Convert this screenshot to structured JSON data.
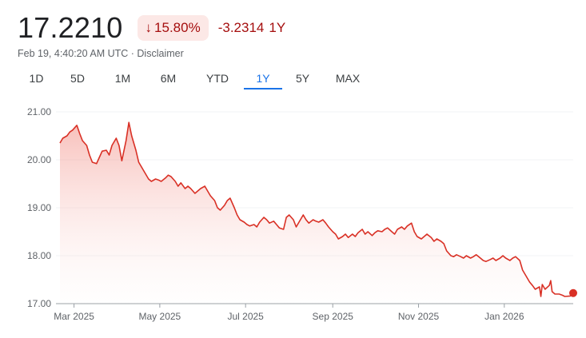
{
  "quote": {
    "price": "17.2210",
    "change_percent": "15.80%",
    "change_direction_icon": "arrow-down-icon",
    "change_absolute": "-3.2314",
    "change_period": "1Y",
    "timestamp": "Feb 19, 4:40:20 AM UTC",
    "separator": "·",
    "disclaimer_label": "Disclaimer"
  },
  "colors": {
    "negative": "#a50e0e",
    "negative_bg": "#fce8e6",
    "line": "#d93025",
    "active_tab": "#1a73e8"
  },
  "range_tabs": [
    {
      "label": "1D",
      "active": false
    },
    {
      "label": "5D",
      "active": false
    },
    {
      "label": "1M",
      "active": false
    },
    {
      "label": "6M",
      "active": false
    },
    {
      "label": "YTD",
      "active": false
    },
    {
      "label": "1Y",
      "active": true
    },
    {
      "label": "5Y",
      "active": false
    },
    {
      "label": "MAX",
      "active": false
    }
  ],
  "chart_data": {
    "type": "area",
    "title": "",
    "xlabel": "",
    "ylabel": "",
    "x_range": [
      "2025-02-19",
      "2026-02-19"
    ],
    "ylim": [
      17.0,
      21.0
    ],
    "y_ticks": [
      "21.00",
      "20.00",
      "19.00",
      "18.00",
      "17.00"
    ],
    "x_ticks": [
      {
        "label": "Mar 2025",
        "date": "2025-03-01"
      },
      {
        "label": "May 2025",
        "date": "2025-05-01"
      },
      {
        "label": "Jul 2025",
        "date": "2025-07-01"
      },
      {
        "label": "Sep 2025",
        "date": "2025-09-01"
      },
      {
        "label": "Nov 2025",
        "date": "2025-11-01"
      },
      {
        "label": "Jan 2026",
        "date": "2026-01-01"
      }
    ],
    "grid": true,
    "legend": "none",
    "series": [
      {
        "color": "#d93025",
        "points": [
          [
            "2025-02-19",
            20.35
          ],
          [
            "2025-02-21",
            20.45
          ],
          [
            "2025-02-24",
            20.5
          ],
          [
            "2025-02-26",
            20.58
          ],
          [
            "2025-02-28",
            20.62
          ],
          [
            "2025-03-03",
            20.72
          ],
          [
            "2025-03-05",
            20.55
          ],
          [
            "2025-03-07",
            20.4
          ],
          [
            "2025-03-10",
            20.3
          ],
          [
            "2025-03-12",
            20.1
          ],
          [
            "2025-03-14",
            19.95
          ],
          [
            "2025-03-17",
            19.92
          ],
          [
            "2025-03-19",
            20.05
          ],
          [
            "2025-03-21",
            20.18
          ],
          [
            "2025-03-24",
            20.2
          ],
          [
            "2025-03-26",
            20.1
          ],
          [
            "2025-03-28",
            20.3
          ],
          [
            "2025-03-31",
            20.45
          ],
          [
            "2025-04-02",
            20.3
          ],
          [
            "2025-04-04",
            19.98
          ],
          [
            "2025-04-07",
            20.4
          ],
          [
            "2025-04-09",
            20.78
          ],
          [
            "2025-04-11",
            20.5
          ],
          [
            "2025-04-14",
            20.2
          ],
          [
            "2025-04-16",
            19.95
          ],
          [
            "2025-04-18",
            19.85
          ],
          [
            "2025-04-21",
            19.7
          ],
          [
            "2025-04-23",
            19.6
          ],
          [
            "2025-04-25",
            19.55
          ],
          [
            "2025-04-28",
            19.6
          ],
          [
            "2025-04-30",
            19.58
          ],
          [
            "2025-05-02",
            19.55
          ],
          [
            "2025-05-05",
            19.62
          ],
          [
            "2025-05-07",
            19.68
          ],
          [
            "2025-05-09",
            19.65
          ],
          [
            "2025-05-12",
            19.55
          ],
          [
            "2025-05-14",
            19.45
          ],
          [
            "2025-05-16",
            19.52
          ],
          [
            "2025-05-19",
            19.4
          ],
          [
            "2025-05-21",
            19.45
          ],
          [
            "2025-05-23",
            19.4
          ],
          [
            "2025-05-26",
            19.3
          ],
          [
            "2025-05-28",
            19.35
          ],
          [
            "2025-05-30",
            19.4
          ],
          [
            "2025-06-02",
            19.45
          ],
          [
            "2025-06-04",
            19.35
          ],
          [
            "2025-06-06",
            19.25
          ],
          [
            "2025-06-09",
            19.15
          ],
          [
            "2025-06-11",
            19.0
          ],
          [
            "2025-06-13",
            18.95
          ],
          [
            "2025-06-16",
            19.05
          ],
          [
            "2025-06-18",
            19.15
          ],
          [
            "2025-06-20",
            19.2
          ],
          [
            "2025-06-23",
            19.0
          ],
          [
            "2025-06-25",
            18.85
          ],
          [
            "2025-06-27",
            18.75
          ],
          [
            "2025-06-30",
            18.7
          ],
          [
            "2025-07-02",
            18.65
          ],
          [
            "2025-07-04",
            18.62
          ],
          [
            "2025-07-07",
            18.65
          ],
          [
            "2025-07-09",
            18.6
          ],
          [
            "2025-07-11",
            18.7
          ],
          [
            "2025-07-14",
            18.8
          ],
          [
            "2025-07-16",
            18.75
          ],
          [
            "2025-07-18",
            18.68
          ],
          [
            "2025-07-21",
            18.72
          ],
          [
            "2025-07-23",
            18.65
          ],
          [
            "2025-07-25",
            18.58
          ],
          [
            "2025-07-28",
            18.55
          ],
          [
            "2025-07-30",
            18.8
          ],
          [
            "2025-08-01",
            18.85
          ],
          [
            "2025-08-04",
            18.75
          ],
          [
            "2025-08-06",
            18.6
          ],
          [
            "2025-08-08",
            18.7
          ],
          [
            "2025-08-11",
            18.85
          ],
          [
            "2025-08-13",
            18.75
          ],
          [
            "2025-08-15",
            18.68
          ],
          [
            "2025-08-18",
            18.75
          ],
          [
            "2025-08-20",
            18.72
          ],
          [
            "2025-08-22",
            18.7
          ],
          [
            "2025-08-25",
            18.75
          ],
          [
            "2025-08-27",
            18.68
          ],
          [
            "2025-08-29",
            18.6
          ],
          [
            "2025-09-01",
            18.5
          ],
          [
            "2025-09-03",
            18.45
          ],
          [
            "2025-09-05",
            18.35
          ],
          [
            "2025-09-08",
            18.4
          ],
          [
            "2025-09-10",
            18.45
          ],
          [
            "2025-09-12",
            18.38
          ],
          [
            "2025-09-15",
            18.45
          ],
          [
            "2025-09-17",
            18.4
          ],
          [
            "2025-09-19",
            18.48
          ],
          [
            "2025-09-22",
            18.55
          ],
          [
            "2025-09-24",
            18.45
          ],
          [
            "2025-09-26",
            18.5
          ],
          [
            "2025-09-29",
            18.42
          ],
          [
            "2025-10-01",
            18.48
          ],
          [
            "2025-10-03",
            18.52
          ],
          [
            "2025-10-06",
            18.5
          ],
          [
            "2025-10-08",
            18.55
          ],
          [
            "2025-10-10",
            18.58
          ],
          [
            "2025-10-13",
            18.5
          ],
          [
            "2025-10-15",
            18.45
          ],
          [
            "2025-10-17",
            18.55
          ],
          [
            "2025-10-20",
            18.6
          ],
          [
            "2025-10-22",
            18.55
          ],
          [
            "2025-10-24",
            18.62
          ],
          [
            "2025-10-27",
            18.68
          ],
          [
            "2025-10-29",
            18.5
          ],
          [
            "2025-10-31",
            18.4
          ],
          [
            "2025-11-03",
            18.35
          ],
          [
            "2025-11-05",
            18.4
          ],
          [
            "2025-11-07",
            18.45
          ],
          [
            "2025-11-10",
            18.38
          ],
          [
            "2025-11-12",
            18.3
          ],
          [
            "2025-11-14",
            18.35
          ],
          [
            "2025-11-17",
            18.3
          ],
          [
            "2025-11-19",
            18.25
          ],
          [
            "2025-11-21",
            18.1
          ],
          [
            "2025-11-24",
            18.0
          ],
          [
            "2025-11-26",
            17.98
          ],
          [
            "2025-11-28",
            18.02
          ],
          [
            "2025-12-01",
            17.98
          ],
          [
            "2025-12-03",
            17.95
          ],
          [
            "2025-12-05",
            18.0
          ],
          [
            "2025-12-08",
            17.95
          ],
          [
            "2025-12-10",
            17.98
          ],
          [
            "2025-12-12",
            18.02
          ],
          [
            "2025-12-15",
            17.95
          ],
          [
            "2025-12-17",
            17.9
          ],
          [
            "2025-12-19",
            17.88
          ],
          [
            "2025-12-22",
            17.92
          ],
          [
            "2025-12-24",
            17.95
          ],
          [
            "2025-12-26",
            17.9
          ],
          [
            "2025-12-29",
            17.95
          ],
          [
            "2025-12-31",
            18.0
          ],
          [
            "2026-01-02",
            17.95
          ],
          [
            "2026-01-05",
            17.9
          ],
          [
            "2026-01-07",
            17.95
          ],
          [
            "2026-01-09",
            17.98
          ],
          [
            "2026-01-12",
            17.9
          ],
          [
            "2026-01-14",
            17.7
          ],
          [
            "2026-01-16",
            17.6
          ],
          [
            "2026-01-19",
            17.45
          ],
          [
            "2026-01-21",
            17.38
          ],
          [
            "2026-01-23",
            17.3
          ],
          [
            "2026-01-26",
            17.35
          ],
          [
            "2026-01-27",
            17.15
          ],
          [
            "2026-01-28",
            17.4
          ],
          [
            "2026-01-30",
            17.3
          ],
          [
            "2026-02-02",
            17.38
          ],
          [
            "2026-02-03",
            17.48
          ],
          [
            "2026-02-04",
            17.25
          ],
          [
            "2026-02-06",
            17.2
          ],
          [
            "2026-02-09",
            17.2
          ],
          [
            "2026-02-11",
            17.18
          ],
          [
            "2026-02-13",
            17.15
          ],
          [
            "2026-02-17",
            17.16
          ],
          [
            "2026-02-19",
            17.221
          ]
        ]
      }
    ]
  }
}
